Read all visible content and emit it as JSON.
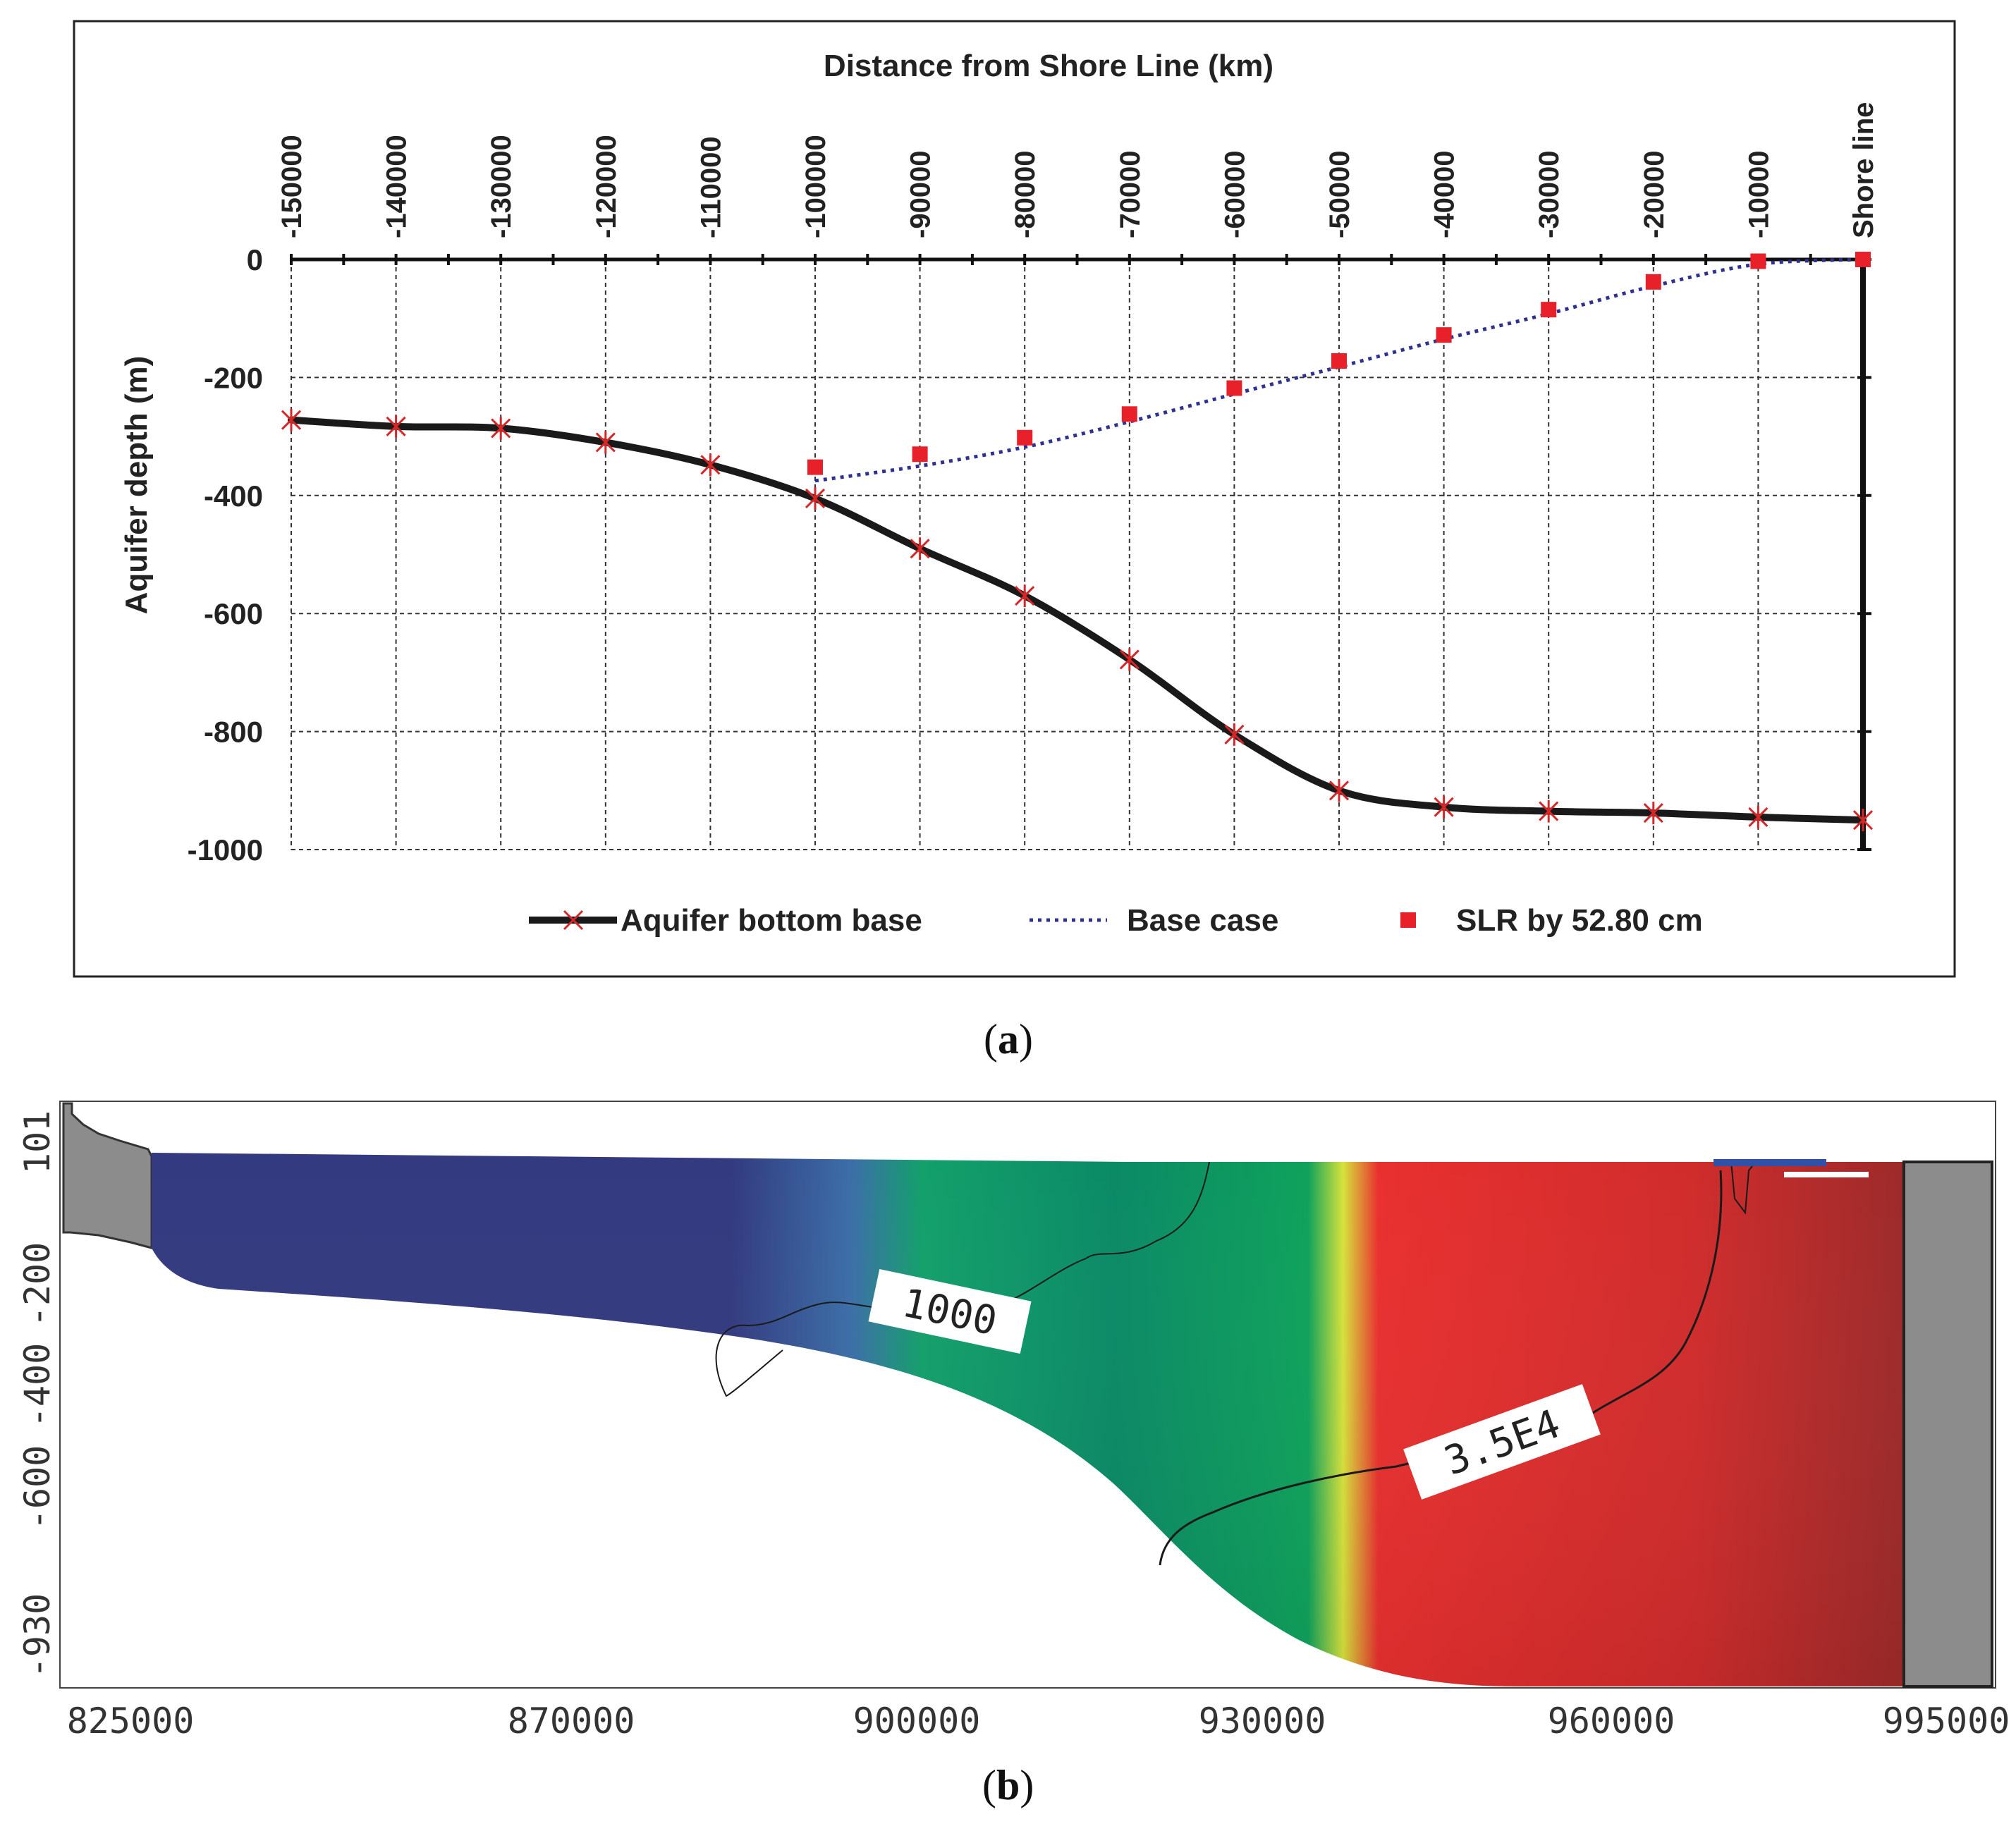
{
  "chart_data": [
    {
      "type": "line",
      "panel": "a",
      "caption_label": "a",
      "title": "Distance from Shore Line (km)",
      "ylabel": "Aquifer depth (m)",
      "x_ticks": [
        {
          "value": -150000,
          "label": "-150000"
        },
        {
          "value": -140000,
          "label": "-140000"
        },
        {
          "value": -130000,
          "label": "-130000"
        },
        {
          "value": -120000,
          "label": "-120000"
        },
        {
          "value": -110000,
          "label": "-110000"
        },
        {
          "value": -100000,
          "label": "-100000"
        },
        {
          "value": -90000,
          "label": "-90000"
        },
        {
          "value": -80000,
          "label": "-80000"
        },
        {
          "value": -70000,
          "label": "-70000"
        },
        {
          "value": -60000,
          "label": "-60000"
        },
        {
          "value": -50000,
          "label": "-50000"
        },
        {
          "value": -40000,
          "label": "-40000"
        },
        {
          "value": -30000,
          "label": "-30000"
        },
        {
          "value": -20000,
          "label": "-20000"
        },
        {
          "value": -10000,
          "label": "-10000"
        },
        {
          "value": 0,
          "label": "Shore line"
        }
      ],
      "y_ticks": [
        {
          "value": 0,
          "label": "0"
        },
        {
          "value": -200,
          "label": "-200"
        },
        {
          "value": -400,
          "label": "-400"
        },
        {
          "value": -600,
          "label": "-600"
        },
        {
          "value": -800,
          "label": "-800"
        },
        {
          "value": -1000,
          "label": "-1000"
        }
      ],
      "xlim": [
        -150000,
        0
      ],
      "ylim": [
        -1000,
        0
      ],
      "grid": true,
      "legend_position": "bottom",
      "series": [
        {
          "name": "Aquifer bottom base",
          "style": "solid-line-with-x-markers",
          "color": "#1a1a1a",
          "marker_color": "#d62728",
          "x": [
            -150000,
            -140000,
            -130000,
            -120000,
            -110000,
            -100000,
            -90000,
            -80000,
            -70000,
            -60000,
            -50000,
            -40000,
            -30000,
            -20000,
            -10000,
            0
          ],
          "y": [
            -272,
            -283,
            -286,
            -310,
            -348,
            -405,
            -490,
            -570,
            -678,
            -805,
            -900,
            -928,
            -935,
            -938,
            -945,
            -950
          ]
        },
        {
          "name": "Base case",
          "style": "dotted-line",
          "color": "#2e3192",
          "x": [
            -100000,
            -90000,
            -80000,
            -70000,
            -60000,
            -50000,
            -40000,
            -30000,
            -20000,
            -10000,
            0
          ],
          "y": [
            -375,
            -350,
            -318,
            -275,
            -228,
            -182,
            -135,
            -92,
            -45,
            -8,
            0
          ]
        },
        {
          "name": "SLR by 52.80 cm",
          "style": "square-markers",
          "color": "#e8202a",
          "x": [
            -100000,
            -90000,
            -80000,
            -70000,
            -60000,
            -50000,
            -40000,
            -30000,
            -20000,
            -10000,
            0
          ],
          "y": [
            -352,
            -330,
            -302,
            -262,
            -218,
            -172,
            -128,
            -85,
            -38,
            -3,
            0
          ]
        }
      ]
    },
    {
      "type": "heatmap",
      "panel": "b",
      "caption_label": "b",
      "title": "",
      "x_ticks": [
        "825000",
        "870000",
        "900000",
        "930000",
        "960000",
        "995000"
      ],
      "y_ticks": [
        "101",
        "-200",
        "-400",
        "-600",
        "-930"
      ],
      "contours": [
        {
          "label": "1000",
          "from_color": "#333a7f",
          "to_color": "#0f8f6a"
        },
        {
          "label": "3.5E4",
          "from_color": "#f0e63a",
          "to_color": "#e8302f"
        }
      ],
      "color_scale": [
        "#333a7f",
        "#0f8f6a",
        "#0cb259",
        "#f0e63a",
        "#e8302f",
        "#9d2a2a"
      ],
      "boundary_color": "#8c8c8c"
    }
  ]
}
